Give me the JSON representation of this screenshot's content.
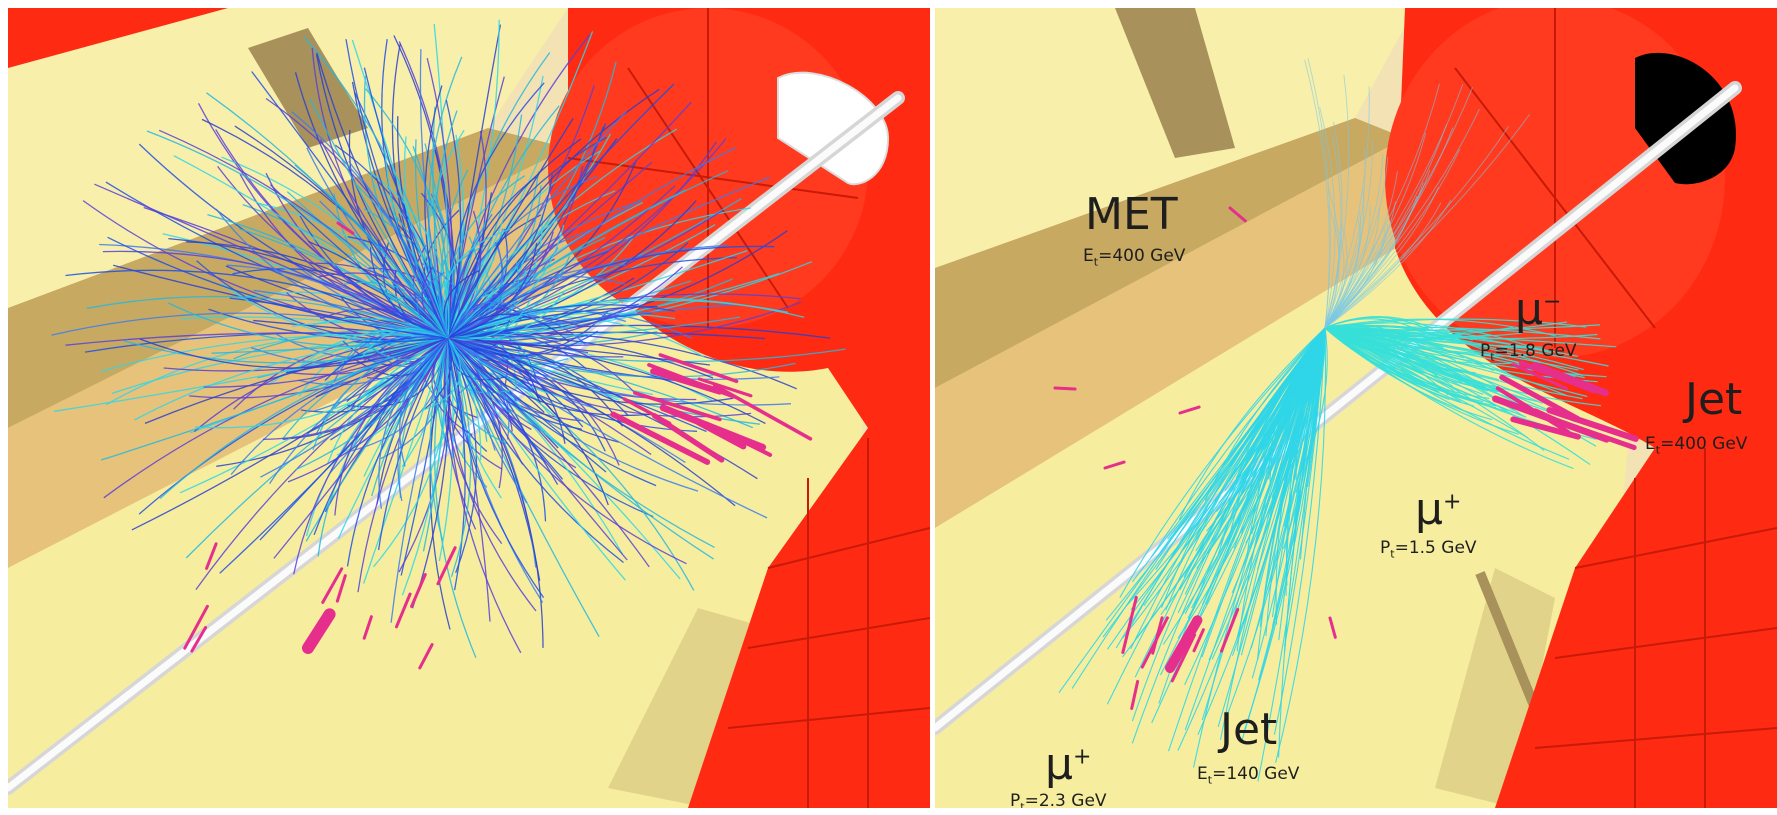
{
  "image_description": "",
  "colors": {
    "calorimeter_red": "#ff2a12",
    "support_yellow": "#f6ee9e",
    "track_blue": "#1f4fe6",
    "track_cyan": "#2fd6e8",
    "deposit_magenta": "#e62e8c",
    "beampipe": "#f2f2f2"
  },
  "right_panel": {
    "labels": [
      {
        "id": "met",
        "name": "MET",
        "value": "E",
        "sub": "t",
        "rest": "=400 GeV"
      },
      {
        "id": "mu-minus",
        "name": "μ",
        "sup": "−",
        "value": "P",
        "sub": "t",
        "rest": "=1.8 GeV"
      },
      {
        "id": "jet-right",
        "name": "Jet",
        "value": "E",
        "sub": "t",
        "rest": "=400 GeV"
      },
      {
        "id": "mu-plus-center",
        "name": "μ",
        "sup": "+",
        "value": "P",
        "sub": "t",
        "rest": "=1.5 GeV"
      },
      {
        "id": "jet-bottom",
        "name": "Jet",
        "value": "E",
        "sub": "t",
        "rest": "=140 GeV"
      },
      {
        "id": "mu-plus-bottom",
        "name": "μ",
        "sup": "+",
        "value": "P",
        "sub": "t",
        "rest": "=2.3 GeV"
      }
    ]
  }
}
